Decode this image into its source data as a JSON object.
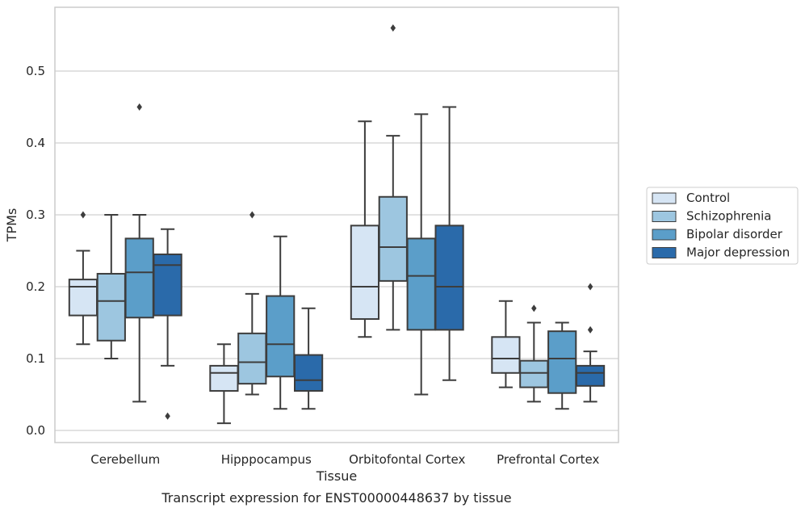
{
  "caption": "Transcript expression for ENST00000448637 by tissue",
  "chart_data": {
    "type": "box",
    "xlabel": "Tissue",
    "ylabel": "TPMs",
    "ylim": [
      -0.015,
      0.585
    ],
    "yticks": [
      0.0,
      0.1,
      0.2,
      0.3,
      0.4,
      0.5
    ],
    "grid": "horizontal",
    "legend_position": "right",
    "categories": [
      "Cerebellum",
      "Hipppocampus",
      "Orbitofontal Cortex",
      "Prefrontal Cortex"
    ],
    "series": [
      {
        "name": "Control",
        "color": "#d6e5f4",
        "boxes": [
          {
            "whislo": 0.12,
            "q1": 0.16,
            "med": 0.2,
            "q3": 0.21,
            "whishi": 0.25,
            "fliers": [
              0.3
            ]
          },
          {
            "whislo": 0.01,
            "q1": 0.055,
            "med": 0.08,
            "q3": 0.09,
            "whishi": 0.12,
            "fliers": []
          },
          {
            "whislo": 0.13,
            "q1": 0.155,
            "med": 0.2,
            "q3": 0.285,
            "whishi": 0.43,
            "fliers": []
          },
          {
            "whislo": 0.06,
            "q1": 0.08,
            "med": 0.1,
            "q3": 0.13,
            "whishi": 0.18,
            "fliers": []
          }
        ]
      },
      {
        "name": "Schizophrenia",
        "color": "#9dc6e0",
        "boxes": [
          {
            "whislo": 0.1,
            "q1": 0.125,
            "med": 0.18,
            "q3": 0.218,
            "whishi": 0.3,
            "fliers": []
          },
          {
            "whislo": 0.05,
            "q1": 0.065,
            "med": 0.095,
            "q3": 0.135,
            "whishi": 0.19,
            "fliers": [
              0.3
            ]
          },
          {
            "whislo": 0.14,
            "q1": 0.208,
            "med": 0.255,
            "q3": 0.325,
            "whishi": 0.41,
            "fliers": [
              0.56
            ]
          },
          {
            "whislo": 0.04,
            "q1": 0.06,
            "med": 0.08,
            "q3": 0.097,
            "whishi": 0.15,
            "fliers": [
              0.17
            ]
          }
        ]
      },
      {
        "name": "Bipolar disorder",
        "color": "#5b9ec9",
        "boxes": [
          {
            "whislo": 0.04,
            "q1": 0.157,
            "med": 0.22,
            "q3": 0.267,
            "whishi": 0.3,
            "fliers": [
              0.45
            ]
          },
          {
            "whislo": 0.03,
            "q1": 0.075,
            "med": 0.12,
            "q3": 0.187,
            "whishi": 0.27,
            "fliers": []
          },
          {
            "whislo": 0.05,
            "q1": 0.14,
            "med": 0.215,
            "q3": 0.267,
            "whishi": 0.44,
            "fliers": []
          },
          {
            "whislo": 0.03,
            "q1": 0.052,
            "med": 0.1,
            "q3": 0.138,
            "whishi": 0.15,
            "fliers": []
          }
        ]
      },
      {
        "name": "Major depression",
        "color": "#2a6aaa",
        "boxes": [
          {
            "whislo": 0.09,
            "q1": 0.16,
            "med": 0.23,
            "q3": 0.245,
            "whishi": 0.28,
            "fliers": [
              0.02
            ]
          },
          {
            "whislo": 0.03,
            "q1": 0.055,
            "med": 0.07,
            "q3": 0.105,
            "whishi": 0.17,
            "fliers": []
          },
          {
            "whislo": 0.07,
            "q1": 0.14,
            "med": 0.2,
            "q3": 0.285,
            "whishi": 0.45,
            "fliers": []
          },
          {
            "whislo": 0.04,
            "q1": 0.062,
            "med": 0.08,
            "q3": 0.09,
            "whishi": 0.11,
            "fliers": [
              0.14,
              0.2
            ]
          }
        ]
      }
    ]
  }
}
